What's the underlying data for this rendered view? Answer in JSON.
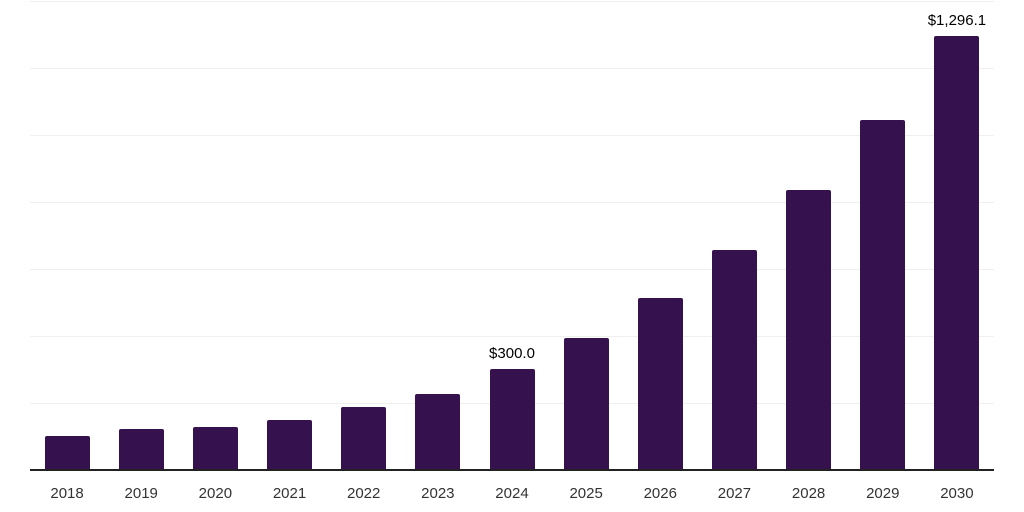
{
  "chart_data": {
    "type": "bar",
    "categories": [
      "2018",
      "2019",
      "2020",
      "2021",
      "2022",
      "2023",
      "2024",
      "2025",
      "2026",
      "2027",
      "2028",
      "2029",
      "2030"
    ],
    "values": [
      100,
      122,
      126,
      148,
      186,
      227,
      300.0,
      394,
      512,
      656,
      835,
      1043,
      1296.1
    ],
    "value_labels": [
      {
        "category": "2024",
        "index": 6,
        "text": "$300.0"
      },
      {
        "category": "2030",
        "index": 12,
        "text": "$1,296.1"
      }
    ],
    "title": "",
    "xlabel": "",
    "ylabel": "",
    "ylim": [
      0,
      1400
    ],
    "grid_step": 200,
    "grid": "horizontal-only",
    "y_axis_tick_labels": "none",
    "legend": "none"
  },
  "colors": {
    "bar_fill": "#35124d",
    "gridline": "#efefef",
    "axis_line": "#222222",
    "tick_label": "#333333",
    "value_label": "#000000",
    "background": "#ffffff"
  }
}
